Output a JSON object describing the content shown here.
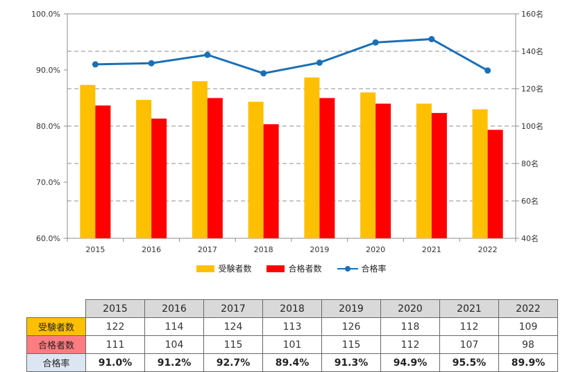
{
  "chart_data": {
    "type": "bar",
    "categories": [
      "2015",
      "2016",
      "2017",
      "2018",
      "2019",
      "2020",
      "2021",
      "2022"
    ],
    "series": [
      {
        "name": "受験者数",
        "kind": "bar",
        "axis": "right",
        "color": "#ffc000",
        "values": [
          122,
          114,
          124,
          113,
          126,
          118,
          112,
          109
        ]
      },
      {
        "name": "合格者数",
        "kind": "bar",
        "axis": "right",
        "color": "#ff0000",
        "values": [
          111,
          104,
          115,
          101,
          115,
          112,
          107,
          98
        ]
      },
      {
        "name": "合格率",
        "kind": "line",
        "axis": "left",
        "color": "#1a6fb5",
        "values": [
          91.0,
          91.2,
          92.7,
          89.4,
          91.3,
          94.9,
          95.5,
          89.9
        ]
      }
    ],
    "y_left": {
      "lim": [
        60,
        100
      ],
      "ticks": [
        60,
        70,
        80,
        90,
        100
      ],
      "tick_labels": [
        "60.0%",
        "70.0%",
        "80.0%",
        "90.0%",
        "100.0%"
      ]
    },
    "y_right": {
      "lim": [
        40,
        160
      ],
      "ticks": [
        40,
        60,
        80,
        100,
        120,
        140,
        160
      ],
      "tick_labels": [
        "40名",
        "60名",
        "80名",
        "100名",
        "120名",
        "140名",
        "160名"
      ]
    },
    "grid": "dashed horizontal",
    "legend_position": "bottom"
  },
  "table": {
    "years": [
      "2015",
      "2016",
      "2017",
      "2018",
      "2019",
      "2020",
      "2021",
      "2022"
    ],
    "rows": [
      {
        "label": "受験者数",
        "values": [
          "122",
          "114",
          "124",
          "113",
          "126",
          "118",
          "112",
          "109"
        ]
      },
      {
        "label": "合格者数",
        "values": [
          "111",
          "104",
          "115",
          "101",
          "115",
          "112",
          "107",
          "98"
        ]
      },
      {
        "label": "合格率",
        "values": [
          "91.0%",
          "91.2%",
          "92.7%",
          "89.4%",
          "91.3%",
          "94.9%",
          "95.5%",
          "89.9%"
        ]
      }
    ]
  }
}
